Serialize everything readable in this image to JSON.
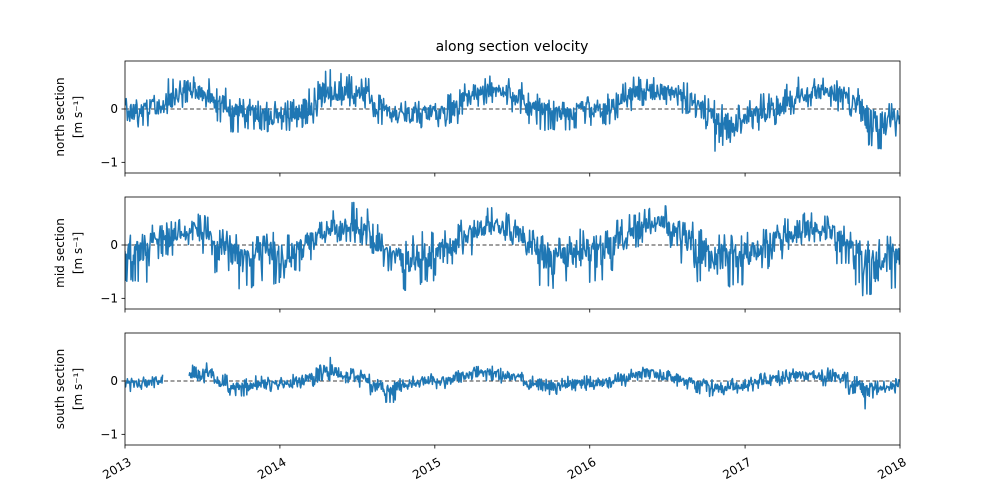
{
  "chart_data": {
    "type": "line",
    "title": "along section velocity",
    "x_ticks": [
      "2013",
      "2014",
      "2015",
      "2016",
      "2017",
      "2018"
    ],
    "x_range": [
      "2013-01-01",
      "2018-01-01"
    ],
    "shared_x": true,
    "y_ticks": [
      -1,
      0
    ],
    "reference_line": {
      "y": 0,
      "style": "dashed",
      "color": "#000000"
    },
    "series_color": "#1f77b4",
    "panels": [
      {
        "ylabel_line1": "north section",
        "ylabel_line2": "[m s⁻¹]",
        "ylim": [
          -1.2,
          0.9
        ],
        "y_tick_labels": [
          "−1",
          "0"
        ],
        "x": [
          "2013-01",
          "2013-02",
          "2013-03",
          "2013-04",
          "2013-05",
          "2013-06",
          "2013-07",
          "2013-08",
          "2013-09",
          "2013-10",
          "2013-11",
          "2013-12",
          "2014-01",
          "2014-02",
          "2014-03",
          "2014-04",
          "2014-05",
          "2014-06",
          "2014-07",
          "2014-08",
          "2014-09",
          "2014-10",
          "2014-11",
          "2014-12",
          "2015-01",
          "2015-02",
          "2015-03",
          "2015-04",
          "2015-05",
          "2015-06",
          "2015-07",
          "2015-08",
          "2015-09",
          "2015-10",
          "2015-11",
          "2015-12",
          "2016-01",
          "2016-02",
          "2016-03",
          "2016-04",
          "2016-05",
          "2016-06",
          "2016-07",
          "2016-08",
          "2016-09",
          "2016-10",
          "2016-11",
          "2016-12",
          "2017-01",
          "2017-02",
          "2017-03",
          "2017-04",
          "2017-05",
          "2017-06",
          "2017-07",
          "2017-08",
          "2017-09",
          "2017-10",
          "2017-11",
          "2017-12"
        ],
        "y_mean": [
          -0.05,
          0.0,
          0.05,
          0.15,
          0.25,
          0.3,
          0.25,
          0.1,
          0.0,
          -0.05,
          -0.05,
          -0.1,
          -0.1,
          -0.05,
          0.05,
          0.25,
          0.3,
          0.3,
          0.25,
          0.05,
          -0.05,
          -0.1,
          -0.1,
          -0.05,
          -0.05,
          0.05,
          0.2,
          0.3,
          0.35,
          0.3,
          0.2,
          0.05,
          0.0,
          -0.05,
          -0.05,
          0.0,
          0.0,
          0.05,
          0.15,
          0.25,
          0.3,
          0.3,
          0.3,
          0.25,
          0.05,
          -0.2,
          -0.3,
          -0.25,
          -0.15,
          -0.05,
          0.05,
          0.2,
          0.25,
          0.3,
          0.3,
          0.25,
          0.1,
          -0.1,
          -0.2,
          -0.1
        ],
        "y_high": [
          0.2,
          0.2,
          0.3,
          0.6,
          0.55,
          0.65,
          0.6,
          0.4,
          0.2,
          0.2,
          0.15,
          0.15,
          0.15,
          0.2,
          0.4,
          0.75,
          0.7,
          0.65,
          0.6,
          0.3,
          0.2,
          0.15,
          0.15,
          0.2,
          0.15,
          0.3,
          0.5,
          0.6,
          0.65,
          0.6,
          0.5,
          0.3,
          0.2,
          0.15,
          0.15,
          0.25,
          0.2,
          0.3,
          0.5,
          0.6,
          0.6,
          0.6,
          0.55,
          0.5,
          0.3,
          0.2,
          0.1,
          0.1,
          0.2,
          0.3,
          0.4,
          0.5,
          0.6,
          0.6,
          0.6,
          0.55,
          0.4,
          0.2,
          0.1,
          0.3
        ],
        "y_low": [
          -0.45,
          -0.35,
          -0.25,
          -0.1,
          0.0,
          0.05,
          0.0,
          -0.25,
          -0.45,
          -0.4,
          -0.4,
          -0.45,
          -0.4,
          -0.35,
          -0.3,
          0.0,
          0.05,
          0.05,
          0.0,
          -0.3,
          -0.4,
          -0.4,
          -0.4,
          -0.35,
          -0.35,
          -0.3,
          -0.1,
          0.05,
          0.1,
          0.05,
          -0.1,
          -0.3,
          -0.4,
          -0.4,
          -0.4,
          -0.3,
          -0.35,
          -0.3,
          -0.2,
          -0.05,
          0.05,
          0.05,
          0.05,
          -0.1,
          -0.45,
          -0.8,
          -1.05,
          -0.75,
          -0.55,
          -0.4,
          -0.3,
          -0.1,
          0.0,
          0.05,
          0.05,
          -0.05,
          -0.35,
          -0.7,
          -0.75,
          -0.55
        ]
      },
      {
        "ylabel_line1": "mid section",
        "ylabel_line2": "[m s⁻¹]",
        "ylim": [
          -1.2,
          0.9
        ],
        "y_tick_labels": [
          "−1",
          "0"
        ],
        "x": [
          "2013-01",
          "2013-02",
          "2013-03",
          "2013-04",
          "2013-05",
          "2013-06",
          "2013-07",
          "2013-08",
          "2013-09",
          "2013-10",
          "2013-11",
          "2013-12",
          "2014-01",
          "2014-02",
          "2014-03",
          "2014-04",
          "2014-05",
          "2014-06",
          "2014-07",
          "2014-08",
          "2014-09",
          "2014-10",
          "2014-11",
          "2014-12",
          "2015-01",
          "2015-02",
          "2015-03",
          "2015-04",
          "2015-05",
          "2015-06",
          "2015-07",
          "2015-08",
          "2015-09",
          "2015-10",
          "2015-11",
          "2015-12",
          "2016-01",
          "2016-02",
          "2016-03",
          "2016-04",
          "2016-05",
          "2016-06",
          "2016-07",
          "2016-08",
          "2016-09",
          "2016-10",
          "2016-11",
          "2016-12",
          "2017-01",
          "2017-02",
          "2017-03",
          "2017-04",
          "2017-05",
          "2017-06",
          "2017-07",
          "2017-08",
          "2017-09",
          "2017-10",
          "2017-11",
          "2017-12"
        ],
        "y_mean": [
          -0.1,
          -0.05,
          0.05,
          0.15,
          0.2,
          0.25,
          0.2,
          0.0,
          -0.15,
          -0.2,
          -0.15,
          -0.15,
          -0.15,
          -0.05,
          0.1,
          0.25,
          0.3,
          0.35,
          0.3,
          0.05,
          -0.2,
          -0.25,
          -0.2,
          -0.15,
          -0.1,
          0.05,
          0.2,
          0.3,
          0.35,
          0.3,
          0.2,
          0.0,
          -0.15,
          -0.2,
          -0.15,
          -0.1,
          -0.1,
          0.0,
          0.15,
          0.25,
          0.35,
          0.4,
          0.3,
          0.1,
          -0.1,
          -0.2,
          -0.2,
          -0.15,
          -0.1,
          0.0,
          0.1,
          0.2,
          0.3,
          0.3,
          0.25,
          0.1,
          -0.1,
          -0.25,
          -0.3,
          -0.2
        ],
        "y_high": [
          0.2,
          0.2,
          0.4,
          0.45,
          0.5,
          0.6,
          0.55,
          0.3,
          0.2,
          0.1,
          0.2,
          0.25,
          0.2,
          0.25,
          0.4,
          0.6,
          0.65,
          0.8,
          0.7,
          0.4,
          0.15,
          0.1,
          0.2,
          0.25,
          0.3,
          0.4,
          0.5,
          0.6,
          0.7,
          0.6,
          0.5,
          0.3,
          0.2,
          0.15,
          0.2,
          0.3,
          0.2,
          0.3,
          0.5,
          0.6,
          0.7,
          0.75,
          0.65,
          0.45,
          0.3,
          0.15,
          0.2,
          0.2,
          0.25,
          0.3,
          0.4,
          0.5,
          0.6,
          0.6,
          0.55,
          0.4,
          0.25,
          0.1,
          0.1,
          0.2
        ],
        "y_low": [
          -0.7,
          -0.7,
          -0.5,
          -0.2,
          0.0,
          0.05,
          -0.2,
          -0.55,
          -0.85,
          -0.8,
          -0.7,
          -0.75,
          -0.65,
          -0.5,
          -0.3,
          0.0,
          0.05,
          0.05,
          0.0,
          -0.4,
          -0.8,
          -0.85,
          -0.75,
          -0.7,
          -0.6,
          -0.4,
          -0.2,
          0.0,
          0.05,
          0.05,
          -0.2,
          -0.5,
          -0.8,
          -0.85,
          -0.7,
          -0.65,
          -0.7,
          -0.5,
          -0.3,
          -0.05,
          0.05,
          0.1,
          -0.05,
          -0.35,
          -0.7,
          -0.85,
          -0.8,
          -0.75,
          -0.65,
          -0.45,
          -0.3,
          -0.1,
          0.0,
          0.05,
          -0.05,
          -0.35,
          -0.75,
          -0.95,
          -1.1,
          -0.85
        ]
      },
      {
        "ylabel_line1": "south section",
        "ylabel_line2": "[m s⁻¹]",
        "ylim": [
          -1.2,
          0.9
        ],
        "y_tick_labels": [
          "−1",
          "0"
        ],
        "x": [
          "2013-01",
          "2013-02",
          "2013-03",
          "2013-04",
          "2013-05",
          "2013-06",
          "2013-07",
          "2013-08",
          "2013-09",
          "2013-10",
          "2013-11",
          "2013-12",
          "2014-01",
          "2014-02",
          "2014-03",
          "2014-04",
          "2014-05",
          "2014-06",
          "2014-07",
          "2014-08",
          "2014-09",
          "2014-10",
          "2014-11",
          "2014-12",
          "2015-01",
          "2015-02",
          "2015-03",
          "2015-04",
          "2015-05",
          "2015-06",
          "2015-07",
          "2015-08",
          "2015-09",
          "2015-10",
          "2015-11",
          "2015-12",
          "2016-01",
          "2016-02",
          "2016-03",
          "2016-04",
          "2016-05",
          "2016-06",
          "2016-07",
          "2016-08",
          "2016-09",
          "2016-10",
          "2016-11",
          "2016-12",
          "2017-01",
          "2017-02",
          "2017-03",
          "2017-04",
          "2017-05",
          "2017-06",
          "2017-07",
          "2017-08",
          "2017-09",
          "2017-10",
          "2017-11",
          "2017-12"
        ],
        "y_mean": [
          -0.05,
          -0.05,
          0.0,
          null,
          null,
          0.1,
          0.15,
          0.0,
          -0.1,
          -0.1,
          -0.05,
          -0.05,
          -0.05,
          0.0,
          0.05,
          0.15,
          0.15,
          0.1,
          0.05,
          -0.1,
          -0.15,
          -0.1,
          -0.05,
          0.0,
          0.0,
          0.05,
          0.1,
          0.15,
          0.15,
          0.1,
          0.05,
          -0.05,
          -0.1,
          -0.1,
          -0.05,
          -0.05,
          -0.05,
          0.0,
          0.05,
          0.1,
          0.15,
          0.1,
          0.05,
          0.0,
          -0.05,
          -0.1,
          -0.15,
          -0.1,
          -0.05,
          0.0,
          0.05,
          0.1,
          0.1,
          0.1,
          0.1,
          0.05,
          -0.05,
          -0.1,
          -0.15,
          -0.1
        ],
        "y_high": [
          0.05,
          0.1,
          0.15,
          null,
          null,
          0.3,
          0.35,
          0.15,
          0.05,
          0.05,
          0.1,
          0.1,
          0.1,
          0.15,
          0.25,
          0.45,
          0.35,
          0.25,
          0.2,
          0.05,
          0.0,
          0.05,
          0.1,
          0.15,
          0.15,
          0.2,
          0.25,
          0.3,
          0.3,
          0.25,
          0.2,
          0.1,
          0.05,
          0.05,
          0.1,
          0.1,
          0.1,
          0.15,
          0.2,
          0.25,
          0.3,
          0.25,
          0.2,
          0.1,
          0.05,
          0.05,
          0.0,
          0.05,
          0.1,
          0.15,
          0.2,
          0.25,
          0.25,
          0.2,
          0.25,
          0.2,
          0.1,
          0.05,
          0.0,
          0.05
        ],
        "y_low": [
          -0.2,
          -0.2,
          -0.15,
          null,
          null,
          0.0,
          -0.05,
          -0.2,
          -0.3,
          -0.3,
          -0.25,
          -0.2,
          -0.2,
          -0.15,
          -0.1,
          0.0,
          0.0,
          -0.05,
          -0.15,
          -0.3,
          -0.4,
          -0.3,
          -0.2,
          -0.15,
          -0.15,
          -0.1,
          -0.05,
          0.0,
          0.0,
          -0.05,
          -0.1,
          -0.2,
          -0.3,
          -0.25,
          -0.2,
          -0.2,
          -0.2,
          -0.15,
          -0.1,
          -0.05,
          0.0,
          -0.05,
          -0.1,
          -0.15,
          -0.25,
          -0.3,
          -0.35,
          -0.25,
          -0.2,
          -0.15,
          -0.1,
          -0.05,
          -0.05,
          -0.05,
          -0.1,
          -0.15,
          -0.25,
          -0.55,
          -0.3,
          -0.25
        ]
      }
    ]
  }
}
